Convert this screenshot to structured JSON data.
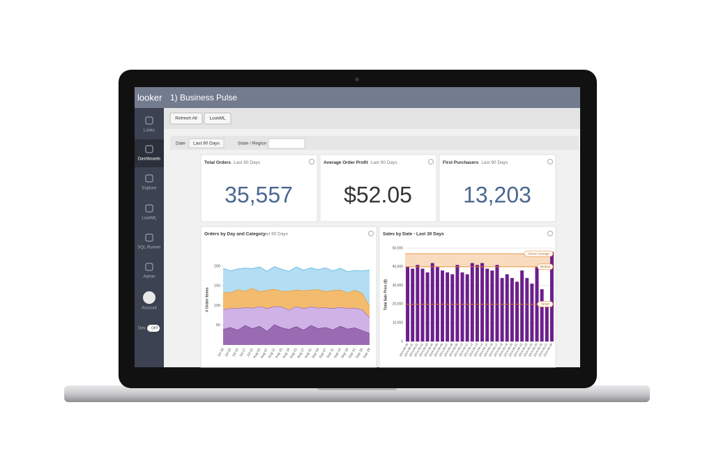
{
  "app": {
    "logo": "looker",
    "title": "1) Business Pulse"
  },
  "nav": [
    "Looks",
    "Dashboards",
    "Explore",
    "LookML",
    "SQL Runner",
    "Admin",
    "Account"
  ],
  "dev": {
    "label": "Dev",
    "toggle": "OFF"
  },
  "buttons": [
    "Refresh All",
    "LookML"
  ],
  "filters": [
    {
      "label": "Date",
      "value": "Last 90 Days"
    },
    {
      "label": "State / Region"
    }
  ],
  "tiles": [
    {
      "title": "Total Orders",
      "period": "Last 90 Days",
      "value": "35,557",
      "color": "#4a6890"
    },
    {
      "title": "Average Order Profit",
      "period": "Last 90 Days",
      "value": "$52.05",
      "color": "#333333"
    },
    {
      "title": "First Purchasers",
      "period": "Last 90 Days",
      "value": "13,203",
      "color": "#4a6890"
    }
  ],
  "charts": [
    {
      "type": "area",
      "title": "Orders by Day and Category",
      "period": "Last 90 Days",
      "y_label": "# Order Items",
      "categories": [
        "Jul 16",
        "Jul 20",
        "Jul 23",
        "Jul 27",
        "Jul 31",
        "Aug 03",
        "Aug 07",
        "Aug 11",
        "Aug 15",
        "Aug 19",
        "Aug 23",
        "Aug 27",
        "Aug 31",
        "Sep 04",
        "Sep 07",
        "Sep 11",
        "Sep 14",
        "Sep 18",
        "Sep 21",
        "Sep 25",
        "Sep 28"
      ],
      "ylim": [
        0,
        230
      ],
      "yticks": [
        50,
        100,
        150,
        200
      ],
      "series": [
        {
          "color": "#9a6bb3",
          "line": "#5e2a7a",
          "values": [
            40,
            45,
            38,
            50,
            42,
            48,
            35,
            52,
            44,
            40,
            47,
            38,
            50,
            42,
            45,
            39,
            48,
            41,
            44,
            37,
            30
          ]
        },
        {
          "color": "#cfb2e6",
          "line": "#8a55b0",
          "values": [
            50,
            48,
            55,
            45,
            52,
            50,
            58,
            46,
            53,
            49,
            51,
            55,
            47,
            52,
            50,
            54,
            48,
            52,
            50,
            53,
            40
          ]
        },
        {
          "color": "#f3bb6e",
          "line": "#e08a1e",
          "values": [
            45,
            40,
            48,
            42,
            50,
            38,
            46,
            44,
            40,
            48,
            42,
            45,
            43,
            47,
            41,
            46,
            44,
            40,
            45,
            42,
            30
          ]
        },
        {
          "color": "#b3ddf2",
          "line": "#6fc0e6",
          "values": [
            60,
            55,
            52,
            58,
            50,
            62,
            48,
            57,
            55,
            50,
            58,
            52,
            56,
            50,
            60,
            49,
            55,
            53,
            50,
            56,
            90
          ]
        }
      ]
    },
    {
      "type": "bar",
      "title": "Sales by Date - Last 30 Days",
      "y_label": "Total Sale Price ($)",
      "color": "#6c1f8c",
      "categories": [
        "2014-08-30",
        "2014-08-31",
        "2014-09-01",
        "2014-09-02",
        "2014-09-03",
        "2014-09-04",
        "2014-09-05",
        "2014-09-06",
        "2014-09-07",
        "2014-09-08",
        "2014-09-09",
        "2014-09-10",
        "2014-09-11",
        "2014-09-12",
        "2014-09-13",
        "2014-09-14",
        "2014-09-15",
        "2014-09-16",
        "2014-09-17",
        "2014-09-18",
        "2014-09-19",
        "2014-09-20",
        "2014-09-21",
        "2014-09-22",
        "2014-09-23",
        "2014-09-24",
        "2014-09-25",
        "2014-09-26",
        "2014-09-27",
        "2014-09-28"
      ],
      "values": [
        40000,
        39000,
        41000,
        39000,
        37000,
        42000,
        40000,
        38000,
        37000,
        36000,
        41000,
        37000,
        36000,
        42000,
        41000,
        42000,
        39000,
        38000,
        41000,
        34000,
        36000,
        34000,
        32000,
        38000,
        34000,
        31000,
        40000,
        28000,
        19000,
        48000
      ],
      "ylim": [
        0,
        50000
      ],
      "yticks": [
        0,
        {
          "value": 10000,
          "label": "10,000"
        },
        {
          "value": 20000,
          "label": "20,000"
        },
        {
          "value": 30000,
          "label": "30,000"
        },
        {
          "value": 40000,
          "label": "40,000"
        },
        {
          "value": 50000,
          "label": "50,000"
        }
      ],
      "references": [
        {
          "label": "Above Average",
          "value": 47000
        },
        {
          "label": "Median",
          "value": 40000
        },
        {
          "label": "Target",
          "value": 20000
        }
      ]
    }
  ]
}
